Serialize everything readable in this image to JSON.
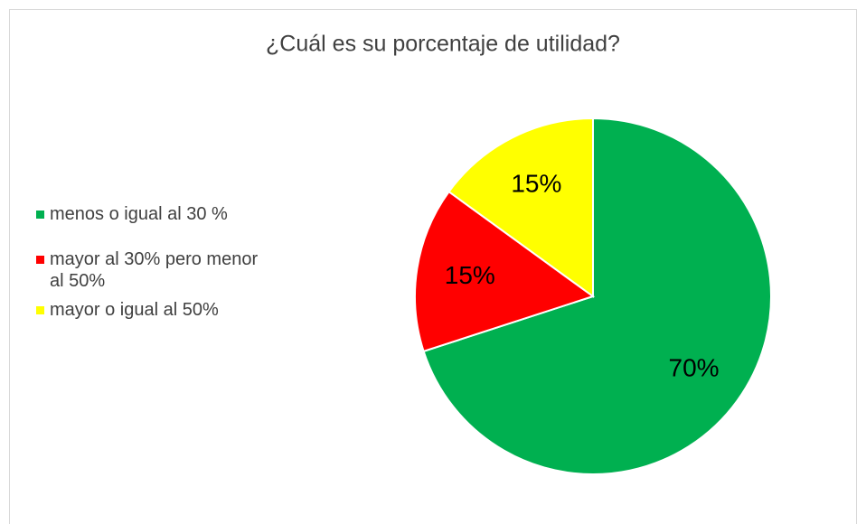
{
  "chart_data": {
    "type": "pie",
    "title": "¿Cuál es su porcentaje de utilidad?",
    "categories": [
      "menos o igual al 30 %",
      "mayor al 30% pero menor al 50%",
      "mayor o igual al 50%"
    ],
    "values": [
      70,
      15,
      15
    ],
    "value_labels": [
      "70%",
      "15%",
      "15%"
    ],
    "colors": [
      "#00b050",
      "#ff0000",
      "#ffff00"
    ],
    "legend": "left"
  }
}
